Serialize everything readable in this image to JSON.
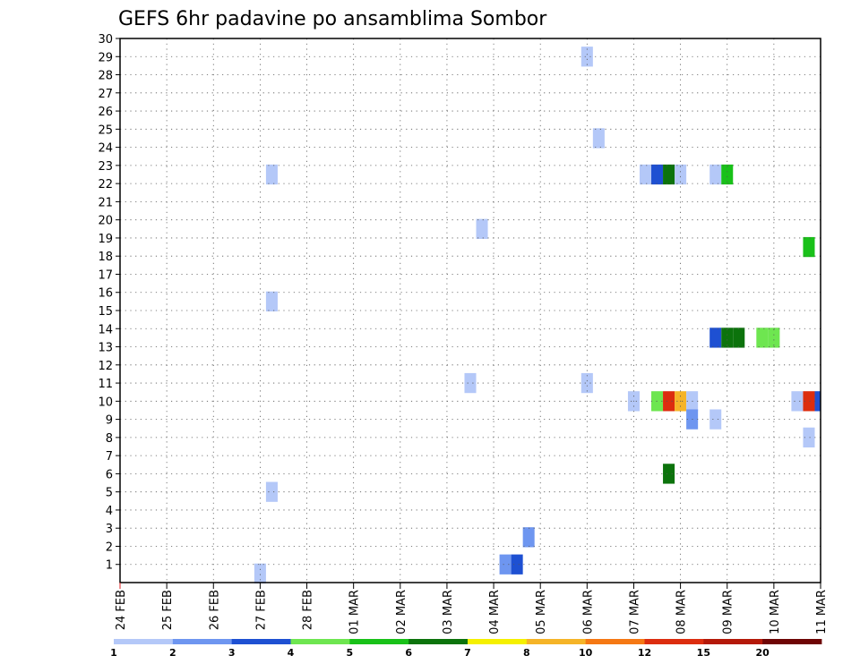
{
  "chart_data": {
    "type": "heatmap",
    "title": "GEFS 6hr padavine po ansamblima Sombor",
    "xlabel": "",
    "ylabel": "",
    "x_tick_labels": [
      "24 FEB",
      "25 FEB",
      "26 FEB",
      "27 FEB",
      "28 FEB",
      "01 MAR",
      "02 MAR",
      "03 MAR",
      "04 MAR",
      "05 MAR",
      "06 MAR",
      "07 MAR",
      "08 MAR",
      "09 MAR",
      "10 MAR",
      "11 MAR"
    ],
    "xlim_days": [
      0,
      15
    ],
    "y_tick_labels": [
      "1",
      "2",
      "3",
      "4",
      "5",
      "6",
      "7",
      "8",
      "9",
      "10",
      "11",
      "12",
      "13",
      "14",
      "15",
      "16",
      "17",
      "18",
      "19",
      "20",
      "21",
      "22",
      "23",
      "24",
      "25",
      "26",
      "27",
      "28",
      "29",
      "30"
    ],
    "ylim": [
      0,
      30
    ],
    "grid": true,
    "legend_position": "bottom",
    "legend_labels": [
      "1",
      "2",
      "3",
      "4",
      "5",
      "6",
      "7",
      "8",
      "10",
      "12",
      "15",
      "20"
    ],
    "colors": [
      "#b4c8f8",
      "#6e96f0",
      "#1e50d2",
      "#6ee650",
      "#19c119",
      "#0c730c",
      "#f5f000",
      "#f5b428",
      "#f57814",
      "#dc2d0f",
      "#b41909",
      "#6e0505"
    ],
    "cells": [
      {
        "day": 3.0,
        "member": 0.5,
        "value": 1
      },
      {
        "day": 3.25,
        "member": 22.5,
        "value": 1
      },
      {
        "day": 3.25,
        "member": 15.5,
        "value": 1
      },
      {
        "day": 3.25,
        "member": 5.0,
        "value": 1
      },
      {
        "day": 7.5,
        "member": 11.0,
        "value": 1
      },
      {
        "day": 7.75,
        "member": 19.5,
        "value": 1
      },
      {
        "day": 8.25,
        "member": 1.0,
        "value": 2
      },
      {
        "day": 8.5,
        "member": 1.0,
        "value": 3
      },
      {
        "day": 8.75,
        "member": 2.5,
        "value": 2
      },
      {
        "day": 10.0,
        "member": 29.0,
        "value": 1
      },
      {
        "day": 10.0,
        "member": 11.0,
        "value": 1
      },
      {
        "day": 10.25,
        "member": 24.5,
        "value": 1
      },
      {
        "day": 11.0,
        "member": 10.0,
        "value": 1
      },
      {
        "day": 11.25,
        "member": 22.5,
        "value": 1
      },
      {
        "day": 11.5,
        "member": 22.5,
        "value": 3
      },
      {
        "day": 11.75,
        "member": 22.5,
        "value": 6
      },
      {
        "day": 12.0,
        "member": 22.5,
        "value": 1
      },
      {
        "day": 11.5,
        "member": 10.0,
        "value": 4
      },
      {
        "day": 11.75,
        "member": 10.0,
        "value": 12
      },
      {
        "day": 12.0,
        "member": 10.0,
        "value": 8
      },
      {
        "day": 12.25,
        "member": 10.0,
        "value": 1
      },
      {
        "day": 12.25,
        "member": 9.0,
        "value": 2
      },
      {
        "day": 11.75,
        "member": 6.0,
        "value": 6
      },
      {
        "day": 12.75,
        "member": 22.5,
        "value": 1
      },
      {
        "day": 13.0,
        "member": 22.5,
        "value": 5
      },
      {
        "day": 12.75,
        "member": 9.0,
        "value": 1
      },
      {
        "day": 12.75,
        "member": 13.5,
        "value": 3
      },
      {
        "day": 13.0,
        "member": 13.5,
        "value": 6
      },
      {
        "day": 13.25,
        "member": 13.5,
        "value": 6
      },
      {
        "day": 13.75,
        "member": 13.5,
        "value": 4
      },
      {
        "day": 14.0,
        "member": 13.5,
        "value": 4
      },
      {
        "day": 14.75,
        "member": 18.5,
        "value": 5
      },
      {
        "day": 14.5,
        "member": 10.0,
        "value": 1
      },
      {
        "day": 14.75,
        "member": 10.0,
        "value": 12
      },
      {
        "day": 15.0,
        "member": 10.0,
        "value": 3
      },
      {
        "day": 14.75,
        "member": 8.0,
        "value": 1
      }
    ]
  }
}
